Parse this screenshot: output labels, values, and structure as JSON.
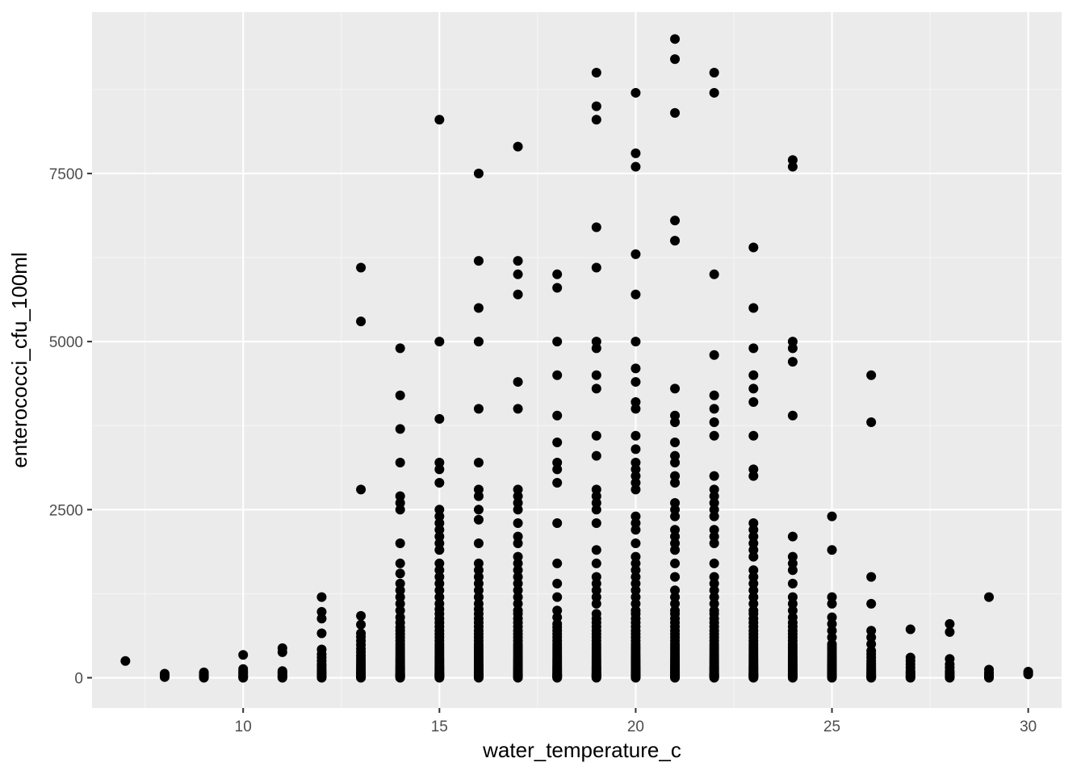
{
  "colors": {
    "panel_background": "#ebebeb",
    "major_grid": "#ffffff",
    "minor_grid": "#f5f5f5",
    "point": "#000000",
    "tick_text": "#4d4d4d",
    "axis_title": "#000000"
  },
  "chart_data": {
    "type": "scatter",
    "title": "",
    "xlabel": "water_temperature_c",
    "ylabel": "enterococci_cfu_100ml",
    "xlim": [
      6.15,
      30.85
    ],
    "ylim": [
      -450,
      9900
    ],
    "x_ticks": [
      10,
      15,
      20,
      25,
      30
    ],
    "x_tick_labels": [
      "10",
      "15",
      "20",
      "25",
      "30"
    ],
    "y_ticks": [
      0,
      2500,
      5000,
      7500
    ],
    "y_tick_labels": [
      "0",
      "2500",
      "5000",
      "7500"
    ],
    "grid": true,
    "legend": "none",
    "points_by_temperature": [
      {
        "x": 7,
        "y": [
          250
        ]
      },
      {
        "x": 8,
        "y": [
          10,
          20,
          30,
          40,
          50,
          60
        ]
      },
      {
        "x": 9,
        "y": [
          0,
          10,
          20,
          30,
          40,
          60,
          80
        ]
      },
      {
        "x": 10,
        "y": [
          0,
          10,
          20,
          40,
          60,
          80,
          100,
          130,
          340
        ]
      },
      {
        "x": 11,
        "y": [
          0,
          10,
          20,
          40,
          60,
          80,
          100,
          380,
          440
        ]
      },
      {
        "x": 12,
        "y": [
          0,
          10,
          20,
          40,
          60,
          80,
          100,
          130,
          170,
          200,
          250,
          300,
          350,
          420,
          660,
          880,
          980,
          1200
        ]
      },
      {
        "x": 13,
        "y": [
          0,
          10,
          20,
          30,
          40,
          60,
          80,
          100,
          120,
          150,
          180,
          210,
          250,
          290,
          330,
          380,
          430,
          490,
          550,
          610,
          660,
          790,
          920,
          2800,
          5300,
          6100
        ]
      },
      {
        "x": 14,
        "y": [
          0,
          10,
          20,
          30,
          40,
          50,
          60,
          80,
          100,
          120,
          140,
          160,
          180,
          210,
          240,
          270,
          300,
          340,
          380,
          420,
          460,
          500,
          550,
          600,
          650,
          700,
          750,
          820,
          900,
          1000,
          1100,
          1200,
          1300,
          1400,
          1550,
          1700,
          2000,
          2500,
          2600,
          2700,
          3200,
          3700,
          4200,
          4900
        ]
      },
      {
        "x": 15,
        "y": [
          0,
          10,
          20,
          30,
          40,
          50,
          60,
          80,
          100,
          120,
          140,
          160,
          180,
          210,
          240,
          270,
          300,
          340,
          380,
          420,
          460,
          500,
          550,
          600,
          650,
          700,
          760,
          820,
          880,
          950,
          1020,
          1100,
          1200,
          1300,
          1400,
          1500,
          1600,
          1700,
          1900,
          2000,
          2100,
          2200,
          2300,
          2400,
          2500,
          2900,
          3100,
          3200,
          3850,
          5000,
          8300
        ]
      },
      {
        "x": 16,
        "y": [
          0,
          10,
          20,
          30,
          40,
          50,
          60,
          80,
          100,
          120,
          140,
          160,
          180,
          210,
          240,
          270,
          300,
          340,
          380,
          420,
          460,
          500,
          550,
          600,
          650,
          700,
          760,
          820,
          880,
          950,
          1020,
          1100,
          1200,
          1300,
          1400,
          1500,
          1600,
          1700,
          2000,
          2350,
          2500,
          2700,
          2800,
          3200,
          4000,
          5000,
          5500,
          6200,
          7500
        ]
      },
      {
        "x": 17,
        "y": [
          0,
          10,
          20,
          30,
          40,
          50,
          60,
          80,
          100,
          120,
          140,
          160,
          180,
          210,
          240,
          270,
          300,
          340,
          380,
          420,
          460,
          500,
          550,
          600,
          650,
          700,
          760,
          820,
          880,
          950,
          1000,
          1100,
          1200,
          1300,
          1400,
          1500,
          1600,
          1700,
          1800,
          2000,
          2100,
          2300,
          2500,
          2600,
          2700,
          2800,
          4000,
          4400,
          5700,
          6000,
          6200,
          7900
        ]
      },
      {
        "x": 18,
        "y": [
          0,
          10,
          20,
          30,
          40,
          50,
          60,
          80,
          100,
          120,
          140,
          160,
          180,
          210,
          240,
          270,
          300,
          340,
          380,
          420,
          460,
          500,
          550,
          600,
          650,
          700,
          750,
          800,
          900,
          1000,
          1200,
          1400,
          1700,
          2300,
          2900,
          3100,
          3200,
          3500,
          3900,
          4500,
          5000,
          5800,
          6000
        ]
      },
      {
        "x": 19,
        "y": [
          0,
          10,
          20,
          30,
          40,
          50,
          60,
          80,
          100,
          120,
          140,
          160,
          180,
          210,
          240,
          270,
          300,
          340,
          380,
          420,
          460,
          500,
          550,
          600,
          650,
          700,
          760,
          820,
          880,
          950,
          1100,
          1200,
          1300,
          1400,
          1500,
          1700,
          1900,
          2300,
          2500,
          2600,
          2700,
          2800,
          3300,
          3600,
          4300,
          4500,
          4900,
          5000,
          6100,
          6700,
          8300,
          8500,
          9000
        ]
      },
      {
        "x": 20,
        "y": [
          0,
          10,
          20,
          30,
          40,
          50,
          60,
          80,
          100,
          120,
          140,
          160,
          180,
          210,
          240,
          270,
          300,
          340,
          380,
          420,
          460,
          500,
          550,
          600,
          650,
          700,
          760,
          820,
          880,
          950,
          1000,
          1100,
          1200,
          1300,
          1400,
          1500,
          1600,
          1700,
          1800,
          2000,
          2200,
          2300,
          2400,
          2800,
          2900,
          3000,
          3100,
          3200,
          3400,
          3600,
          4000,
          4100,
          4400,
          4600,
          5000,
          5700,
          6300,
          7600,
          7800,
          8700
        ]
      },
      {
        "x": 21,
        "y": [
          0,
          10,
          20,
          30,
          40,
          50,
          60,
          80,
          100,
          120,
          140,
          160,
          180,
          210,
          240,
          270,
          300,
          340,
          380,
          420,
          460,
          500,
          550,
          600,
          650,
          700,
          760,
          820,
          880,
          950,
          1000,
          1100,
          1200,
          1300,
          1500,
          1700,
          1900,
          2000,
          2100,
          2200,
          2400,
          2500,
          2600,
          2900,
          3000,
          3200,
          3300,
          3500,
          3800,
          3900,
          4300,
          6500,
          6800,
          8400,
          9200,
          9500
        ]
      },
      {
        "x": 22,
        "y": [
          0,
          10,
          20,
          30,
          40,
          50,
          60,
          80,
          100,
          120,
          140,
          160,
          180,
          210,
          240,
          270,
          300,
          340,
          380,
          420,
          460,
          500,
          550,
          600,
          650,
          700,
          760,
          820,
          880,
          950,
          1000,
          1100,
          1200,
          1300,
          1400,
          1500,
          1700,
          2000,
          2100,
          2200,
          2400,
          2500,
          2600,
          2700,
          2800,
          3000,
          3600,
          3800,
          4000,
          4200,
          4800,
          6000,
          8700,
          9000
        ]
      },
      {
        "x": 23,
        "y": [
          0,
          10,
          20,
          30,
          40,
          50,
          60,
          80,
          100,
          120,
          140,
          160,
          180,
          210,
          240,
          270,
          300,
          340,
          380,
          420,
          460,
          500,
          550,
          600,
          650,
          700,
          760,
          820,
          880,
          950,
          1000,
          1100,
          1200,
          1300,
          1400,
          1500,
          1600,
          1800,
          1900,
          2000,
          2100,
          2200,
          2300,
          3000,
          3100,
          3600,
          4100,
          4300,
          4500,
          4900,
          5500,
          6400
        ]
      },
      {
        "x": 24,
        "y": [
          0,
          10,
          20,
          30,
          40,
          50,
          60,
          80,
          100,
          120,
          140,
          160,
          180,
          210,
          240,
          270,
          300,
          340,
          380,
          420,
          460,
          500,
          550,
          600,
          650,
          700,
          760,
          820,
          900,
          1000,
          1100,
          1200,
          1400,
          1600,
          1700,
          1800,
          2100,
          3900,
          4700,
          4900,
          5000,
          7600,
          7700
        ]
      },
      {
        "x": 25,
        "y": [
          0,
          10,
          20,
          30,
          40,
          50,
          60,
          80,
          100,
          120,
          140,
          160,
          180,
          210,
          240,
          270,
          300,
          340,
          380,
          420,
          460,
          500,
          600,
          700,
          800,
          900,
          1100,
          1200,
          1900,
          2400
        ]
      },
      {
        "x": 26,
        "y": [
          0,
          10,
          20,
          30,
          40,
          60,
          80,
          100,
          120,
          150,
          180,
          210,
          250,
          300,
          350,
          400,
          500,
          600,
          700,
          1100,
          1500,
          3800,
          4500
        ]
      },
      {
        "x": 27,
        "y": [
          0,
          10,
          20,
          40,
          60,
          80,
          100,
          150,
          200,
          250,
          300,
          720
        ]
      },
      {
        "x": 28,
        "y": [
          0,
          10,
          20,
          40,
          60,
          80,
          100,
          150,
          200,
          280,
          680,
          800
        ]
      },
      {
        "x": 29,
        "y": [
          0,
          10,
          20,
          40,
          60,
          80,
          120,
          1200
        ]
      },
      {
        "x": 30,
        "y": [
          50,
          70,
          90
        ]
      }
    ]
  }
}
